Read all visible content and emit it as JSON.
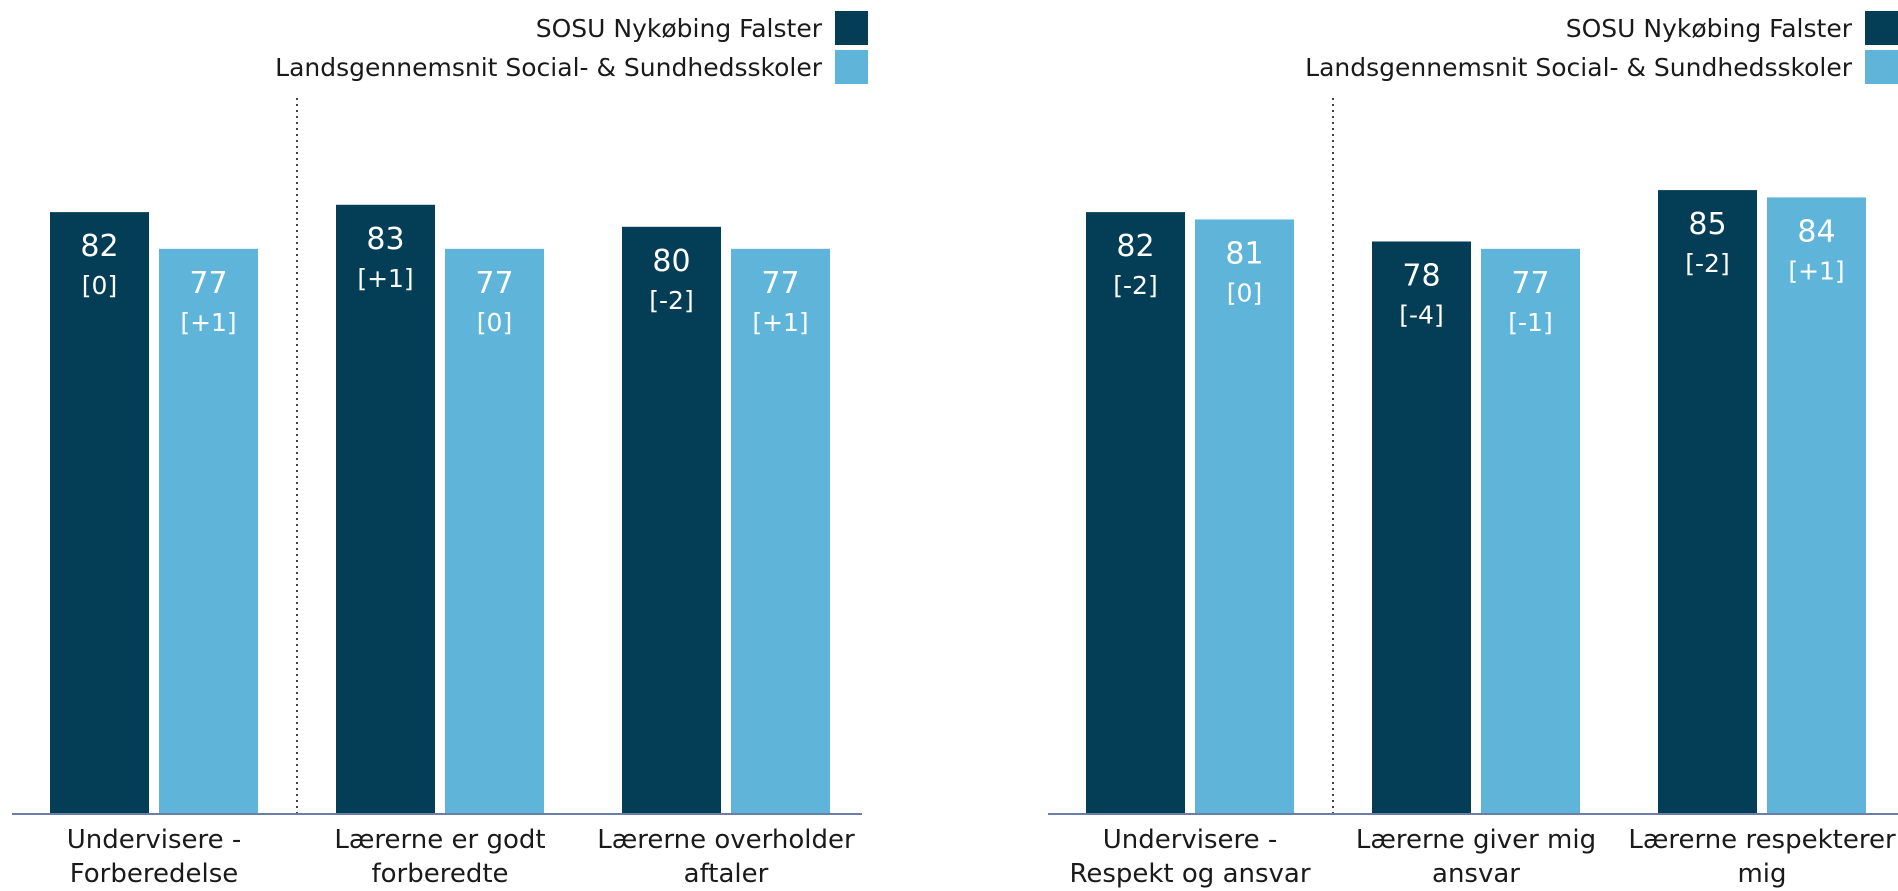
{
  "colors": {
    "primary": "#033e56",
    "secondary": "#5fb4da",
    "axis": "#6a7fa8",
    "divider": "#444444"
  },
  "legend": {
    "primary_label": "SOSU Nykøbing Falster",
    "secondary_label": "Landsgennemsnit Social- & Sundhedsskoler"
  },
  "chart_data": [
    {
      "type": "bar",
      "categories": [
        "Undervisere - Forberedelse",
        "Lærerne er godt forberedte",
        "Lærerne overholder aftaler"
      ],
      "category_lines": [
        [
          "Undervisere -",
          "Forberedelse"
        ],
        [
          "Lærerne er godt",
          "forberedte"
        ],
        [
          "Lærerne overholder",
          "aftaler"
        ]
      ],
      "series": [
        {
          "name": "SOSU Nykøbing Falster",
          "values": [
            82,
            83,
            80
          ],
          "changes": [
            "[0]",
            "[+1]",
            "[-2]"
          ]
        },
        {
          "name": "Landsgennemsnit Social- & Sundhedsskoler",
          "values": [
            77,
            77,
            77
          ],
          "changes": [
            "[+1]",
            "[0]",
            "[+1]"
          ]
        }
      ],
      "ylim": [
        0,
        100
      ],
      "grid": false,
      "legend_position": "top-right",
      "divider_after_first": true
    },
    {
      "type": "bar",
      "categories": [
        "Undervisere - Respekt og ansvar",
        "Lærerne giver mig ansvar",
        "Lærerne respekterer mig"
      ],
      "category_lines": [
        [
          "Undervisere -",
          "Respekt og ansvar"
        ],
        [
          "Lærerne giver mig",
          "ansvar"
        ],
        [
          "Lærerne respekterer",
          "mig"
        ]
      ],
      "series": [
        {
          "name": "SOSU Nykøbing Falster",
          "values": [
            82,
            78,
            85
          ],
          "changes": [
            "[-2]",
            "[-4]",
            "[-2]"
          ]
        },
        {
          "name": "Landsgennemsnit Social- & Sundhedsskoler",
          "values": [
            81,
            77,
            84
          ],
          "changes": [
            "[0]",
            "[-1]",
            "[+1]"
          ]
        }
      ],
      "ylim": [
        0,
        100
      ],
      "grid": false,
      "legend_position": "top-right",
      "divider_after_first": true
    }
  ]
}
